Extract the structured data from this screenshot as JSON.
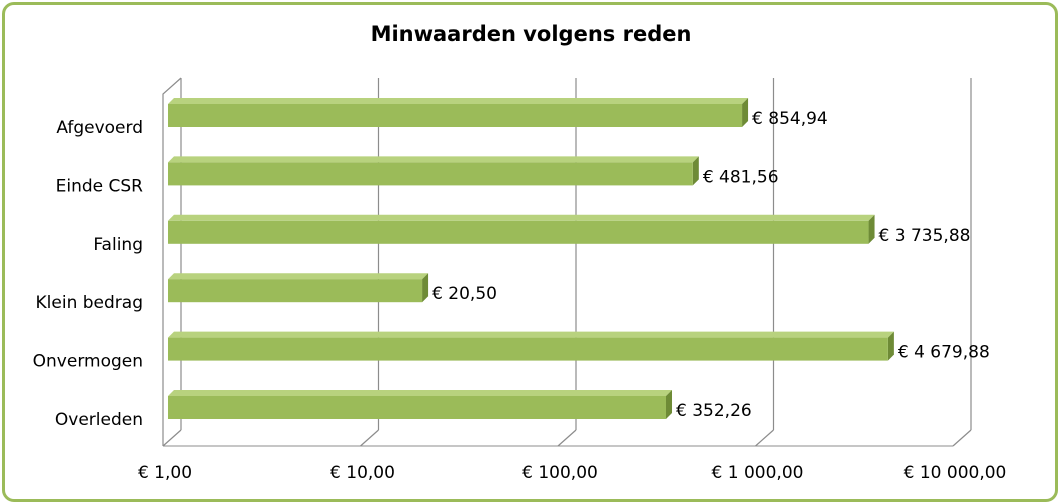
{
  "chart_data": {
    "type": "bar",
    "orientation": "horizontal",
    "style": "3d",
    "title": "Minwaarden volgens reden",
    "categories": [
      "Afgevoerd",
      "Einde CSR",
      "Faling",
      "Klein bedrag",
      "Onvermogen",
      "Overleden"
    ],
    "values": [
      854.94,
      481.56,
      3735.88,
      20.5,
      4679.88,
      352.26
    ],
    "data_labels": [
      "€  854,94",
      "€  481,56",
      "€ 3 735,88",
      "€  20,50",
      "€ 4 679,88",
      "€  352,26"
    ],
    "x_scale": "log",
    "xlim": [
      1,
      10000
    ],
    "x_ticks": [
      1,
      10,
      100,
      1000,
      10000
    ],
    "x_tick_labels": [
      "€  1,00",
      "€  10,00",
      "€  100,00",
      "€ 1 000,00",
      "€ 10 000,00"
    ],
    "grid": true,
    "legend": "none",
    "colors": {
      "bar_front": "#9bbb59",
      "bar_top": "#b8d27e",
      "bar_side": "#6e8b36",
      "frame_border": "#9bbb59",
      "grid": "#8c8c8c"
    }
  }
}
